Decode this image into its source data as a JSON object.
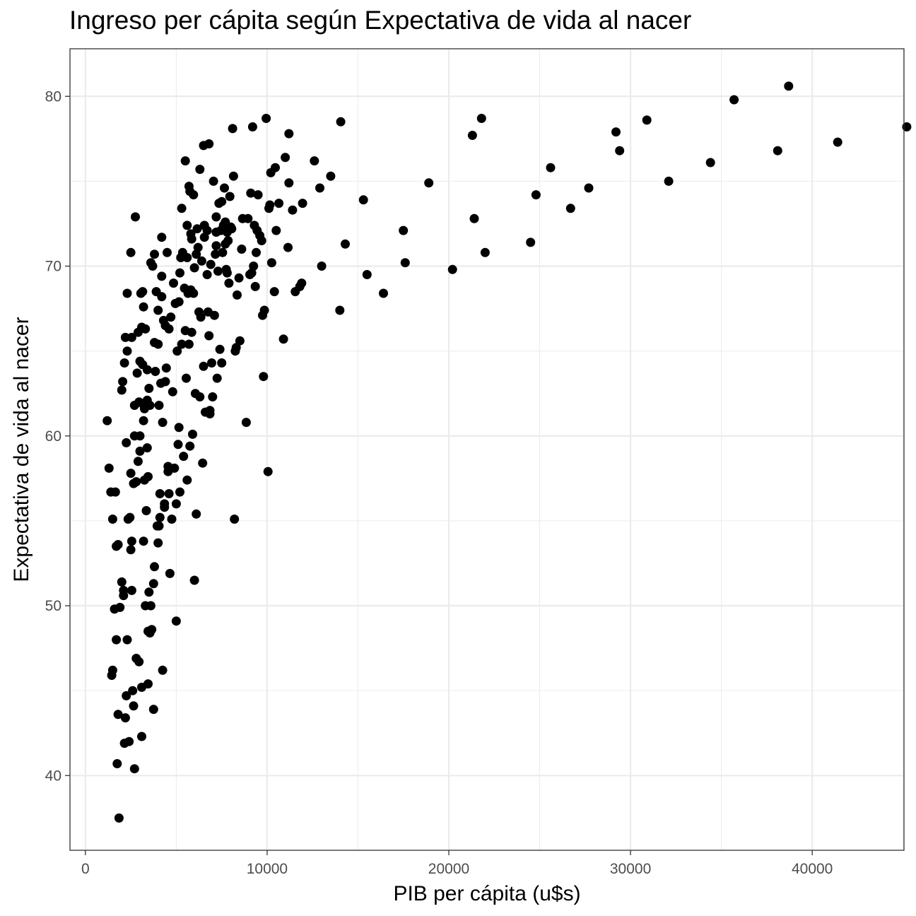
{
  "chart_data": {
    "type": "scatter",
    "title": "Ingreso per cápita según Expectativa de vida al nacer",
    "xlabel": "PIB per cápita (u$s)",
    "ylabel": "Expectativa de vida al nacer",
    "xlim": [
      -850,
      45050
    ],
    "ylim": [
      35.6,
      82.8
    ],
    "x_ticks": [
      0,
      10000,
      20000,
      30000,
      40000
    ],
    "x_tick_labels": [
      "0",
      "10000",
      "20000",
      "30000",
      "40000"
    ],
    "y_ticks": [
      40,
      50,
      60,
      70,
      80
    ],
    "y_tick_labels": [
      "40",
      "50",
      "60",
      "70",
      "80"
    ],
    "grid": true,
    "theme": "bw",
    "point_color": "#000000",
    "points": [
      [
        1200,
        60.9
      ],
      [
        1300,
        58.1
      ],
      [
        1400,
        56.7
      ],
      [
        1450,
        45.9
      ],
      [
        1500,
        46.2
      ],
      [
        1500,
        55.1
      ],
      [
        1600,
        49.8
      ],
      [
        1650,
        56.7
      ],
      [
        1700,
        48.0
      ],
      [
        1700,
        53.5
      ],
      [
        1750,
        40.7
      ],
      [
        1800,
        53.6
      ],
      [
        1800,
        43.6
      ],
      [
        1850,
        37.5
      ],
      [
        1900,
        49.9
      ],
      [
        2000,
        62.7
      ],
      [
        2000,
        51.4
      ],
      [
        2050,
        63.2
      ],
      [
        2100,
        50.9
      ],
      [
        2100,
        50.6
      ],
      [
        2150,
        41.9
      ],
      [
        2150,
        64.3
      ],
      [
        2200,
        65.8
      ],
      [
        2200,
        43.4
      ],
      [
        2250,
        44.7
      ],
      [
        2250,
        59.6
      ],
      [
        2300,
        68.4
      ],
      [
        2300,
        65.0
      ],
      [
        2300,
        48.0
      ],
      [
        2350,
        55.1
      ],
      [
        2400,
        42.0
      ],
      [
        2450,
        55.2
      ],
      [
        2500,
        70.8
      ],
      [
        2500,
        57.8
      ],
      [
        2500,
        53.3
      ],
      [
        2550,
        65.8
      ],
      [
        2550,
        53.8
      ],
      [
        2550,
        50.9
      ],
      [
        2600,
        45.0
      ],
      [
        2650,
        44.1
      ],
      [
        2650,
        57.2
      ],
      [
        2700,
        40.4
      ],
      [
        2700,
        61.8
      ],
      [
        2700,
        60.0
      ],
      [
        2750,
        72.9
      ],
      [
        2800,
        46.9
      ],
      [
        2800,
        57.3
      ],
      [
        2850,
        63.7
      ],
      [
        2900,
        58.5
      ],
      [
        2900,
        66.1
      ],
      [
        2950,
        46.7
      ],
      [
        2950,
        62.0
      ],
      [
        3000,
        59.1
      ],
      [
        3000,
        60.0
      ],
      [
        3000,
        64.4
      ],
      [
        3050,
        68.4
      ],
      [
        3100,
        45.2
      ],
      [
        3100,
        42.3
      ],
      [
        3100,
        66.4
      ],
      [
        3150,
        68.5
      ],
      [
        3150,
        64.2
      ],
      [
        3150,
        61.9
      ],
      [
        3200,
        60.9
      ],
      [
        3200,
        67.6
      ],
      [
        3200,
        53.8
      ],
      [
        3250,
        57.4
      ],
      [
        3250,
        61.6
      ],
      [
        3300,
        66.3
      ],
      [
        3300,
        50.0
      ],
      [
        3350,
        55.6
      ],
      [
        3400,
        62.1
      ],
      [
        3400,
        63.9
      ],
      [
        3400,
        59.3
      ],
      [
        3450,
        48.5
      ],
      [
        3450,
        45.4
      ],
      [
        3450,
        57.6
      ],
      [
        3500,
        62.8
      ],
      [
        3500,
        50.8
      ],
      [
        3550,
        61.8
      ],
      [
        3550,
        48.4
      ],
      [
        3600,
        70.2
      ],
      [
        3600,
        50.0
      ],
      [
        3650,
        48.6
      ],
      [
        3700,
        70.0
      ],
      [
        3750,
        43.9
      ],
      [
        3750,
        51.3
      ],
      [
        3800,
        70.7
      ],
      [
        3800,
        65.5
      ],
      [
        3800,
        52.3
      ],
      [
        3850,
        63.8
      ],
      [
        3900,
        68.5
      ],
      [
        3950,
        54.7
      ],
      [
        4000,
        67.4
      ],
      [
        4000,
        65.4
      ],
      [
        4000,
        53.7
      ],
      [
        4050,
        61.8
      ],
      [
        4050,
        54.7
      ],
      [
        4100,
        56.6
      ],
      [
        4100,
        55.2
      ],
      [
        4150,
        63.1
      ],
      [
        4200,
        71.7
      ],
      [
        4200,
        69.4
      ],
      [
        4200,
        68.2
      ],
      [
        4250,
        60.8
      ],
      [
        4250,
        46.2
      ],
      [
        4300,
        66.8
      ],
      [
        4350,
        56.0
      ],
      [
        4350,
        55.8
      ],
      [
        4400,
        66.5
      ],
      [
        4400,
        63.2
      ],
      [
        4450,
        64.0
      ],
      [
        4500,
        70.8
      ],
      [
        4550,
        58.2
      ],
      [
        4550,
        57.9
      ],
      [
        4600,
        66.3
      ],
      [
        4600,
        56.6
      ],
      [
        4650,
        51.9
      ],
      [
        4700,
        67.0
      ],
      [
        4750,
        55.1
      ],
      [
        4800,
        62.6
      ],
      [
        4850,
        69.0
      ],
      [
        4900,
        58.1
      ],
      [
        4950,
        67.8
      ],
      [
        5000,
        56.0
      ],
      [
        5000,
        49.1
      ],
      [
        5050,
        65.0
      ],
      [
        5100,
        59.5
      ],
      [
        5150,
        67.9
      ],
      [
        5150,
        60.5
      ],
      [
        5200,
        69.6
      ],
      [
        5200,
        56.7
      ],
      [
        5250,
        70.5
      ],
      [
        5300,
        73.4
      ],
      [
        5300,
        65.4
      ],
      [
        5350,
        70.8
      ],
      [
        5400,
        58.8
      ],
      [
        5450,
        68.7
      ],
      [
        5500,
        76.2
      ],
      [
        5500,
        66.2
      ],
      [
        5550,
        63.4
      ],
      [
        5600,
        70.5
      ],
      [
        5600,
        72.4
      ],
      [
        5600,
        57.4
      ],
      [
        5650,
        68.4
      ],
      [
        5700,
        74.7
      ],
      [
        5700,
        65.4
      ],
      [
        5750,
        59.4
      ],
      [
        5750,
        74.4
      ],
      [
        5800,
        71.9
      ],
      [
        5800,
        68.6
      ],
      [
        5850,
        71.6
      ],
      [
        5850,
        66.1
      ],
      [
        5900,
        60.1
      ],
      [
        5950,
        74.2
      ],
      [
        5950,
        68.4
      ],
      [
        6000,
        51.5
      ],
      [
        6000,
        69.9
      ],
      [
        6050,
        62.5
      ],
      [
        6100,
        70.7
      ],
      [
        6100,
        55.4
      ],
      [
        6150,
        72.2
      ],
      [
        6200,
        71.1
      ],
      [
        6250,
        67.3
      ],
      [
        6300,
        62.3
      ],
      [
        6300,
        75.7
      ],
      [
        6350,
        67.0
      ],
      [
        6400,
        70.3
      ],
      [
        6450,
        58.4
      ],
      [
        6500,
        77.1
      ],
      [
        6500,
        64.1
      ],
      [
        6550,
        72.4
      ],
      [
        6550,
        71.7
      ],
      [
        6600,
        61.4
      ],
      [
        6700,
        69.5
      ],
      [
        6700,
        72.1
      ],
      [
        6750,
        67.3
      ],
      [
        6800,
        65.9
      ],
      [
        6800,
        77.2
      ],
      [
        6850,
        61.3
      ],
      [
        6850,
        61.5
      ],
      [
        6900,
        70.1
      ],
      [
        6950,
        64.3
      ],
      [
        7000,
        62.3
      ],
      [
        7050,
        75.0
      ],
      [
        7100,
        67.1
      ],
      [
        7150,
        70.7
      ],
      [
        7200,
        72.0
      ],
      [
        7200,
        72.9
      ],
      [
        7200,
        71.2
      ],
      [
        7250,
        63.4
      ],
      [
        7300,
        69.7
      ],
      [
        7350,
        73.7
      ],
      [
        7400,
        65.1
      ],
      [
        7450,
        72.1
      ],
      [
        7500,
        64.3
      ],
      [
        7500,
        73.8
      ],
      [
        7550,
        70.8
      ],
      [
        7600,
        72.4
      ],
      [
        7650,
        74.6
      ],
      [
        7700,
        72.6
      ],
      [
        7700,
        71.3
      ],
      [
        7750,
        69.8
      ],
      [
        7800,
        69.6
      ],
      [
        7800,
        72.0
      ],
      [
        7850,
        71.5
      ],
      [
        7900,
        69.0
      ],
      [
        7950,
        74.1
      ],
      [
        8000,
        72.3
      ],
      [
        8050,
        72.2
      ],
      [
        8100,
        78.1
      ],
      [
        8150,
        75.3
      ],
      [
        8200,
        55.1
      ],
      [
        8250,
        65.0
      ],
      [
        8300,
        65.2
      ],
      [
        8350,
        68.3
      ],
      [
        8450,
        69.3
      ],
      [
        8500,
        65.6
      ],
      [
        8600,
        71.0
      ],
      [
        8650,
        72.8
      ],
      [
        8850,
        60.8
      ],
      [
        8950,
        72.8
      ],
      [
        9050,
        69.5
      ],
      [
        9100,
        74.3
      ],
      [
        9150,
        69.6
      ],
      [
        9200,
        78.2
      ],
      [
        9250,
        70.0
      ],
      [
        9300,
        72.4
      ],
      [
        9350,
        68.8
      ],
      [
        9400,
        70.8
      ],
      [
        9450,
        72.1
      ],
      [
        9500,
        74.2
      ],
      [
        9600,
        71.8
      ],
      [
        9700,
        71.5
      ],
      [
        9750,
        67.1
      ],
      [
        9800,
        63.5
      ],
      [
        9850,
        67.4
      ],
      [
        9950,
        78.7
      ],
      [
        10050,
        57.9
      ],
      [
        10100,
        73.4
      ],
      [
        10150,
        73.6
      ],
      [
        10200,
        75.5
      ],
      [
        10250,
        70.2
      ],
      [
        10400,
        68.5
      ],
      [
        10450,
        75.8
      ],
      [
        10500,
        72.1
      ],
      [
        10650,
        73.7
      ],
      [
        10900,
        65.7
      ],
      [
        11000,
        76.4
      ],
      [
        11150,
        71.1
      ],
      [
        11200,
        77.8
      ],
      [
        11200,
        74.9
      ],
      [
        11400,
        73.3
      ],
      [
        11550,
        68.5
      ],
      [
        11800,
        68.8
      ],
      [
        11900,
        69.0
      ],
      [
        11950,
        73.7
      ],
      [
        12600,
        76.2
      ],
      [
        12900,
        74.6
      ],
      [
        13000,
        70.0
      ],
      [
        13500,
        75.3
      ],
      [
        14000,
        67.4
      ],
      [
        14050,
        78.5
      ],
      [
        14300,
        71.3
      ],
      [
        15300,
        73.9
      ],
      [
        15500,
        69.5
      ],
      [
        16400,
        68.4
      ],
      [
        17500,
        72.1
      ],
      [
        17600,
        70.2
      ],
      [
        18900,
        74.9
      ],
      [
        20200,
        69.8
      ],
      [
        21300,
        77.7
      ],
      [
        21400,
        72.8
      ],
      [
        21800,
        78.7
      ],
      [
        22000,
        70.8
      ],
      [
        24500,
        71.4
      ],
      [
        24800,
        74.2
      ],
      [
        25600,
        75.8
      ],
      [
        26700,
        73.4
      ],
      [
        27700,
        74.6
      ],
      [
        29200,
        77.9
      ],
      [
        29400,
        76.8
      ],
      [
        30900,
        78.6
      ],
      [
        32100,
        75.0
      ],
      [
        34400,
        76.1
      ],
      [
        35700,
        79.8
      ],
      [
        38100,
        76.8
      ],
      [
        38700,
        80.6
      ],
      [
        41400,
        77.3
      ],
      [
        45200,
        78.2
      ]
    ]
  }
}
